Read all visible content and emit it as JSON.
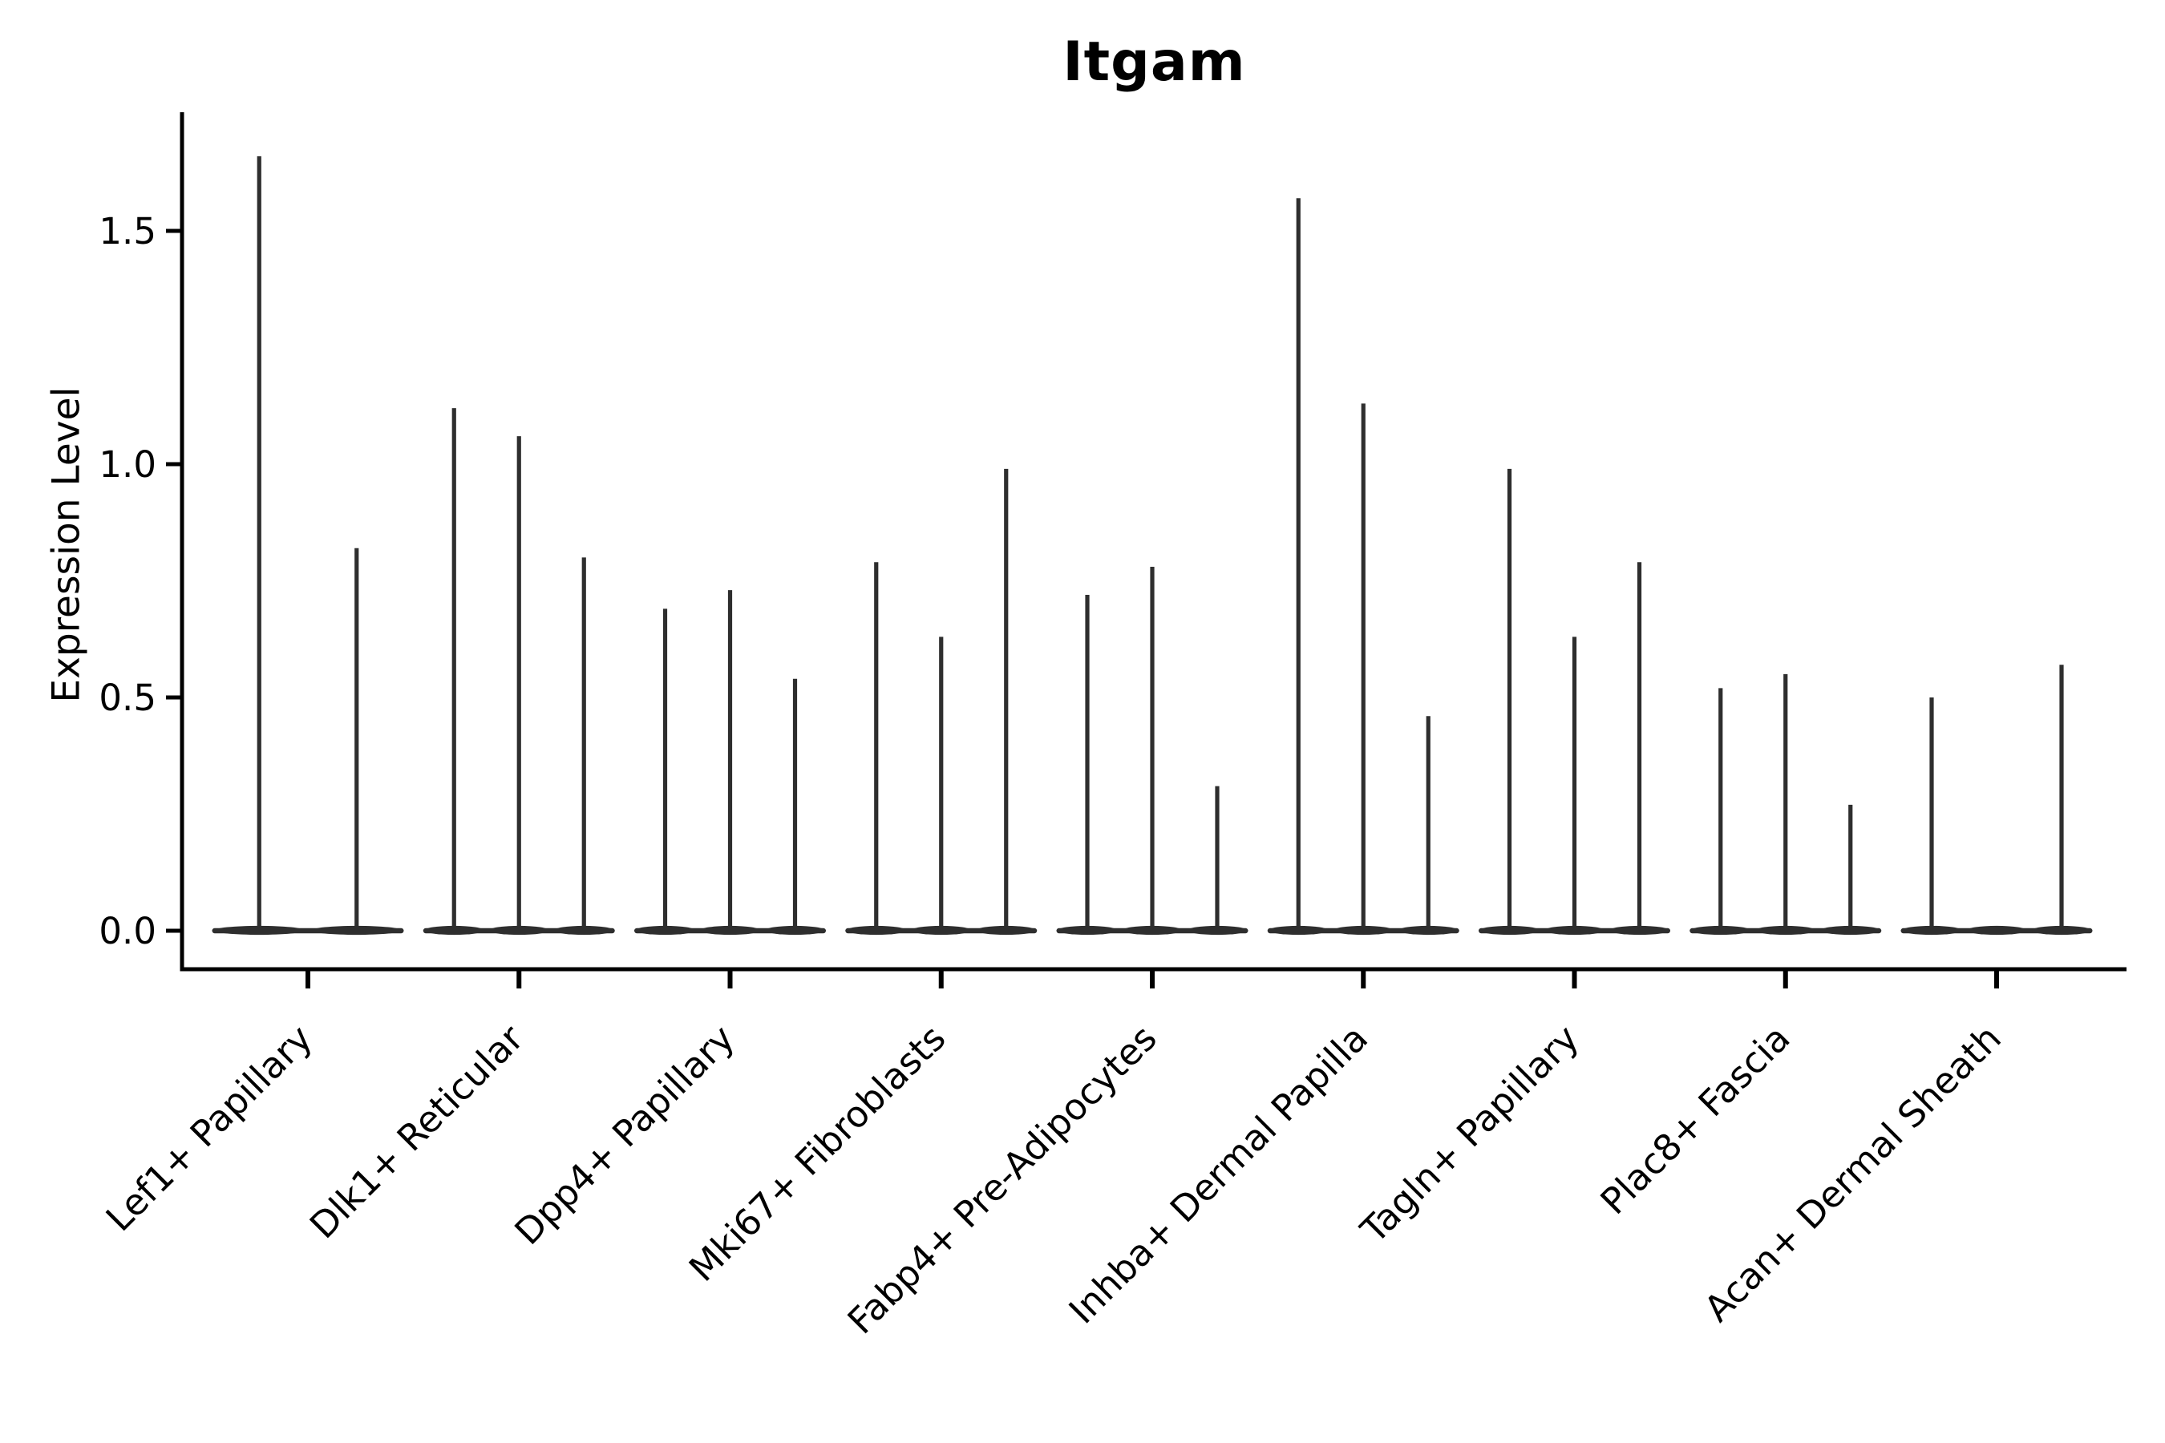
{
  "chart_data": {
    "type": "violin",
    "title": "Itgam",
    "ylabel": "Expression Level",
    "xlabel": "",
    "yticks": [
      0.0,
      0.5,
      1.0,
      1.5
    ],
    "ylim": [
      -0.08,
      1.75
    ],
    "grid": false,
    "legend": "none",
    "violin_color": "#2e2e2e",
    "axis_color": "#000000",
    "categories": [
      "Lef1+ Papillary",
      "Dlk1+ Reticular",
      "Dpp4+ Papillary",
      "Mki67+ Fibroblasts",
      "Fabp4+ Pre-Adipocytes",
      "Inhba+ Dermal Papilla",
      "Tagln+ Papillary",
      "Plac8+ Fascia",
      "Acan+ Dermal Sheath"
    ],
    "groups": [
      {
        "category": "Lef1+ Papillary",
        "violin_max_values": [
          1.66,
          0.82
        ]
      },
      {
        "category": "Dlk1+ Reticular",
        "violin_max_values": [
          1.12,
          1.06,
          0.8
        ]
      },
      {
        "category": "Dpp4+ Papillary",
        "violin_max_values": [
          0.69,
          0.73,
          0.54
        ]
      },
      {
        "category": "Mki67+ Fibroblasts",
        "violin_max_values": [
          0.79,
          0.63,
          0.99
        ]
      },
      {
        "category": "Fabp4+ Pre-Adipocytes",
        "violin_max_values": [
          0.72,
          0.78,
          0.31
        ]
      },
      {
        "category": "Inhba+ Dermal Papilla",
        "violin_max_values": [
          1.57,
          1.13,
          0.46
        ]
      },
      {
        "category": "Tagln+ Papillary",
        "violin_max_values": [
          0.99,
          0.63,
          0.79
        ]
      },
      {
        "category": "Plac8+ Fascia",
        "violin_max_values": [
          0.52,
          0.55,
          0.27
        ]
      },
      {
        "category": "Acan+ Dermal Sheath",
        "violin_max_values": [
          0.5,
          0.0,
          0.57
        ]
      }
    ],
    "note": "Each group shows thin violin distributions: mass concentrated at 0 with a narrow spike up to the max expression value; middle violin of last group is flat at 0."
  }
}
